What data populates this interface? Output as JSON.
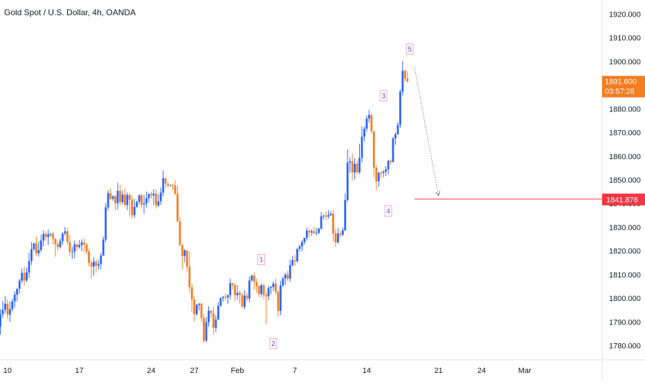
{
  "chart": {
    "title": "Gold Spot / U.S. Dollar, 4h, OANDA"
  },
  "chart_data": {
    "type": "candlestick",
    "title": "Gold Spot / U.S. Dollar, 4h, OANDA",
    "ylim": [
      1774,
      1926
    ],
    "y_ticks": [
      1780,
      1790,
      1800,
      1810,
      1820,
      1830,
      1840,
      1850,
      1860,
      1870,
      1880,
      1890,
      1900,
      1910,
      1920
    ],
    "y_tick_labels": [
      "1780.000",
      "1790.000",
      "1800.000",
      "1810.000",
      "1820.000",
      "1830.000",
      "1840.000",
      "1850.000",
      "1860.000",
      "1870.000",
      "1880.000",
      "1890.000",
      "1900.000",
      "1910.000",
      "1920.000"
    ],
    "x_ticks": [
      {
        "label": "10",
        "candle": 3
      },
      {
        "label": "17",
        "candle": 33
      },
      {
        "label": "24",
        "candle": 63
      },
      {
        "label": "27",
        "candle": 81
      },
      {
        "label": "Feb",
        "candle": 99
      },
      {
        "label": "7",
        "candle": 123
      },
      {
        "label": "14",
        "candle": 153
      },
      {
        "label": "21",
        "candle": 183
      },
      {
        "label": "24",
        "candle": 201
      },
      {
        "label": "Mar",
        "candle": 219
      }
    ],
    "up_color": "#2962ff",
    "down_color": "#f57c1f",
    "grid": false,
    "candles": [
      [
        1788.0,
        1793.2,
        1784.6,
        1795.4
      ],
      [
        1793.2,
        1795.2,
        1791.6,
        1798.8
      ],
      [
        1795.2,
        1797.7,
        1793.7,
        1800.9
      ],
      [
        1797.7,
        1793.1,
        1791.2,
        1799.6
      ],
      [
        1793.1,
        1795.4,
        1789.9,
        1798.6
      ],
      [
        1795.4,
        1798.7,
        1794.4,
        1799.9
      ],
      [
        1798.7,
        1801.5,
        1796.1,
        1802.9
      ],
      [
        1801.5,
        1804.0,
        1798.7,
        1804.1
      ],
      [
        1804.0,
        1807.4,
        1801.9,
        1808.3
      ],
      [
        1807.4,
        1810.7,
        1806.4,
        1812.6
      ],
      [
        1810.7,
        1807.5,
        1805.2,
        1813.3
      ],
      [
        1807.5,
        1810.9,
        1806.9,
        1812.9
      ],
      [
        1810.9,
        1815.7,
        1808.6,
        1819.2
      ],
      [
        1815.7,
        1820.7,
        1814.1,
        1823.7
      ],
      [
        1820.7,
        1823.2,
        1820.0,
        1823.3
      ],
      [
        1823.2,
        1819.0,
        1817.9,
        1826.2
      ],
      [
        1819.0,
        1820.4,
        1817.6,
        1824.1
      ],
      [
        1820.4,
        1824.4,
        1819.4,
        1826.8
      ],
      [
        1824.4,
        1827.2,
        1821.9,
        1828.6
      ],
      [
        1827.2,
        1825.9,
        1824.2,
        1828.2
      ],
      [
        1825.9,
        1827.0,
        1822.5,
        1828.9
      ],
      [
        1827.0,
        1827.2,
        1825.9,
        1827.6
      ],
      [
        1827.2,
        1825.1,
        1822.7,
        1828.2
      ],
      [
        1825.1,
        1822.8,
        1817.6,
        1825.5
      ],
      [
        1822.8,
        1821.6,
        1820.1,
        1823.6
      ],
      [
        1821.6,
        1824.2,
        1820.9,
        1825.4
      ],
      [
        1824.2,
        1827.3,
        1822.7,
        1827.8
      ],
      [
        1827.3,
        1828.3,
        1826.4,
        1830.1
      ],
      [
        1828.3,
        1823.8,
        1822.6,
        1829.7
      ],
      [
        1823.8,
        1819.7,
        1817.9,
        1826.6
      ],
      [
        1819.7,
        1819.7,
        1816.6,
        1821.7
      ],
      [
        1819.7,
        1822.8,
        1817.0,
        1824.4
      ],
      [
        1822.8,
        1821.6,
        1820.0,
        1823.3
      ],
      [
        1821.6,
        1822.5,
        1820.9,
        1824.6
      ],
      [
        1822.5,
        1823.6,
        1819.9,
        1824.9
      ],
      [
        1823.6,
        1822.7,
        1819.4,
        1825.3
      ],
      [
        1822.7,
        1819.7,
        1818.3,
        1823.5
      ],
      [
        1819.7,
        1815.0,
        1813.5,
        1821.0
      ],
      [
        1815.0,
        1813.4,
        1808.4,
        1816.0
      ],
      [
        1813.4,
        1815.4,
        1809.5,
        1817.3
      ],
      [
        1815.4,
        1813.7,
        1810.8,
        1816.5
      ],
      [
        1813.7,
        1814.4,
        1812.1,
        1816.1
      ],
      [
        1814.4,
        1818.0,
        1812.3,
        1819.1
      ],
      [
        1818.0,
        1824.8,
        1817.9,
        1826.1
      ],
      [
        1824.8,
        1838.4,
        1823.6,
        1840.2
      ],
      [
        1838.4,
        1844.4,
        1837.2,
        1845.6
      ],
      [
        1844.4,
        1842.0,
        1841.5,
        1846.4
      ],
      [
        1842.0,
        1843.1,
        1841.1,
        1843.4
      ],
      [
        1843.1,
        1840.1,
        1837.2,
        1843.6
      ],
      [
        1840.1,
        1845.4,
        1837.4,
        1848.8
      ],
      [
        1845.4,
        1840.6,
        1839.2,
        1848.0
      ],
      [
        1840.6,
        1843.8,
        1839.7,
        1845.5
      ],
      [
        1843.8,
        1839.4,
        1838.7,
        1846.3
      ],
      [
        1839.4,
        1843.6,
        1837.3,
        1844.7
      ],
      [
        1843.6,
        1841.7,
        1834.4,
        1844.4
      ],
      [
        1841.7,
        1835.1,
        1833.5,
        1843.4
      ],
      [
        1835.1,
        1838.6,
        1834.0,
        1841.9
      ],
      [
        1838.6,
        1840.7,
        1838.2,
        1841.2
      ],
      [
        1840.7,
        1843.5,
        1839.6,
        1843.9
      ],
      [
        1843.5,
        1839.6,
        1838.0,
        1844.1
      ],
      [
        1839.6,
        1840.1,
        1835.7,
        1843.5
      ],
      [
        1840.1,
        1842.2,
        1838.3,
        1845.1
      ],
      [
        1842.2,
        1844.0,
        1840.6,
        1844.4
      ],
      [
        1844.0,
        1843.4,
        1842.1,
        1845.0
      ],
      [
        1843.4,
        1844.2,
        1839.4,
        1846.1
      ],
      [
        1844.2,
        1839.2,
        1837.9,
        1846.0
      ],
      [
        1839.2,
        1841.0,
        1838.4,
        1844.0
      ],
      [
        1841.0,
        1844.6,
        1839.5,
        1846.7
      ],
      [
        1844.6,
        1850.7,
        1843.0,
        1853.9
      ],
      [
        1850.7,
        1848.4,
        1846.7,
        1850.9
      ],
      [
        1848.4,
        1847.7,
        1846.6,
        1848.8
      ],
      [
        1847.7,
        1847.7,
        1847.3,
        1848.1
      ],
      [
        1847.7,
        1847.6,
        1845.7,
        1848.5
      ],
      [
        1847.6,
        1844.1,
        1843.6,
        1849.9
      ],
      [
        1844.1,
        1832.5,
        1832.0,
        1847.6
      ],
      [
        1832.5,
        1822.5,
        1821.8,
        1834.4
      ],
      [
        1822.5,
        1817.8,
        1812.4,
        1822.8
      ],
      [
        1817.8,
        1820.2,
        1815.1,
        1820.8
      ],
      [
        1820.2,
        1813.4,
        1811.3,
        1820.3
      ],
      [
        1813.4,
        1804.6,
        1802.4,
        1819.6
      ],
      [
        1804.6,
        1799.5,
        1794.1,
        1806.0
      ],
      [
        1799.5,
        1793.3,
        1790.1,
        1801.1
      ],
      [
        1793.3,
        1797.2,
        1792.5,
        1797.6
      ],
      [
        1797.2,
        1797.8,
        1794.8,
        1797.8
      ],
      [
        1797.8,
        1791.6,
        1789.9,
        1797.9
      ],
      [
        1791.6,
        1782.1,
        1781.2,
        1793.4
      ],
      [
        1782.1,
        1789.9,
        1781.3,
        1792.1
      ],
      [
        1789.9,
        1794.7,
        1788.0,
        1796.6
      ],
      [
        1794.7,
        1793.6,
        1791.8,
        1794.9
      ],
      [
        1793.6,
        1787.5,
        1784.7,
        1796.4
      ],
      [
        1787.5,
        1791.0,
        1785.7,
        1792.9
      ],
      [
        1791.0,
        1796.9,
        1790.9,
        1798.3
      ],
      [
        1796.9,
        1800.1,
        1796.3,
        1800.3
      ],
      [
        1800.1,
        1800.6,
        1798.6,
        1801.0
      ],
      [
        1800.6,
        1800.3,
        1799.2,
        1802.2
      ],
      [
        1800.3,
        1801.3,
        1797.6,
        1801.6
      ],
      [
        1801.3,
        1806.3,
        1799.6,
        1808.3
      ],
      [
        1806.3,
        1805.5,
        1803.7,
        1806.5
      ],
      [
        1805.5,
        1801.3,
        1798.7,
        1806.5
      ],
      [
        1801.3,
        1802.3,
        1799.4,
        1805.5
      ],
      [
        1802.3,
        1801.4,
        1797.7,
        1803.2
      ],
      [
        1801.4,
        1796.4,
        1795.7,
        1802.1
      ],
      [
        1796.4,
        1801.1,
        1795.4,
        1803.4
      ],
      [
        1801.1,
        1799.9,
        1798.6,
        1802.4
      ],
      [
        1799.9,
        1807.5,
        1798.3,
        1809.1
      ],
      [
        1807.5,
        1809.6,
        1807.0,
        1809.9
      ],
      [
        1809.6,
        1806.9,
        1803.7,
        1810.9
      ],
      [
        1806.9,
        1805.1,
        1802.3,
        1808.2
      ],
      [
        1805.1,
        1801.8,
        1800.5,
        1805.5
      ],
      [
        1801.8,
        1805.5,
        1800.6,
        1806.1
      ],
      [
        1805.5,
        1801.3,
        1799.5,
        1806.1
      ],
      [
        1801.3,
        1800.8,
        1789.0,
        1802.8
      ],
      [
        1800.8,
        1804.3,
        1799.1,
        1805.3
      ],
      [
        1804.3,
        1804.7,
        1801.6,
        1805.2
      ],
      [
        1804.7,
        1806.2,
        1803.2,
        1807.2
      ],
      [
        1806.2,
        1802.7,
        1801.6,
        1808.3
      ],
      [
        1802.7,
        1794.7,
        1792.2,
        1803.3
      ],
      [
        1794.7,
        1805.4,
        1792.8,
        1807.4
      ],
      [
        1805.4,
        1808.3,
        1804.7,
        1809.1
      ],
      [
        1808.3,
        1810.0,
        1805.6,
        1810.8
      ],
      [
        1810.0,
        1808.3,
        1807.3,
        1811.6
      ],
      [
        1808.3,
        1814.0,
        1806.9,
        1816.3
      ],
      [
        1814.0,
        1816.1,
        1813.4,
        1817.9
      ],
      [
        1816.1,
        1815.6,
        1813.7,
        1818.6
      ],
      [
        1815.6,
        1820.8,
        1815.1,
        1821.3
      ],
      [
        1820.8,
        1821.9,
        1819.6,
        1822.6
      ],
      [
        1821.9,
        1823.7,
        1819.7,
        1824.6
      ],
      [
        1823.7,
        1825.5,
        1822.7,
        1825.6
      ],
      [
        1825.5,
        1828.5,
        1824.4,
        1829.8
      ],
      [
        1828.5,
        1827.8,
        1825.8,
        1829.3
      ],
      [
        1827.8,
        1828.3,
        1826.3,
        1829.1
      ],
      [
        1828.3,
        1827.5,
        1827.0,
        1830.2
      ],
      [
        1827.5,
        1827.6,
        1826.5,
        1829.8
      ],
      [
        1827.6,
        1829.4,
        1827.2,
        1829.8
      ],
      [
        1829.4,
        1834.6,
        1829.0,
        1836.4
      ],
      [
        1834.6,
        1834.9,
        1833.3,
        1835.3
      ],
      [
        1834.9,
        1834.5,
        1833.1,
        1836.7
      ],
      [
        1834.5,
        1835.1,
        1833.7,
        1837.1
      ],
      [
        1835.1,
        1835.7,
        1834.8,
        1836.6
      ],
      [
        1835.7,
        1827.4,
        1823.9,
        1837.2
      ],
      [
        1827.4,
        1823.6,
        1821.8,
        1829.2
      ],
      [
        1823.6,
        1827.4,
        1823.1,
        1829.8
      ],
      [
        1827.4,
        1826.8,
        1825.5,
        1828.5
      ],
      [
        1826.8,
        1828.7,
        1826.3,
        1829.9
      ],
      [
        1828.7,
        1841.5,
        1828.4,
        1844.2
      ],
      [
        1841.5,
        1857.3,
        1840.7,
        1862.9
      ],
      [
        1857.3,
        1857.8,
        1853.0,
        1859.4
      ],
      [
        1857.8,
        1853.2,
        1849.7,
        1861.3
      ],
      [
        1853.2,
        1856.8,
        1850.1,
        1859.1
      ],
      [
        1856.8,
        1853.2,
        1852.4,
        1858.3
      ],
      [
        1853.2,
        1859.3,
        1852.6,
        1865.3
      ],
      [
        1859.3,
        1868.3,
        1857.4,
        1872.6
      ],
      [
        1868.3,
        1871.6,
        1866.3,
        1872.6
      ],
      [
        1871.6,
        1875.9,
        1870.4,
        1877.2
      ],
      [
        1875.9,
        1877.4,
        1874.2,
        1879.6
      ],
      [
        1877.4,
        1870.6,
        1869.4,
        1878.0
      ],
      [
        1870.6,
        1855.1,
        1851.1,
        1870.6
      ],
      [
        1855.1,
        1849.4,
        1845.6,
        1856.1
      ],
      [
        1849.4,
        1853.1,
        1847.0,
        1853.2
      ],
      [
        1853.1,
        1852.9,
        1850.6,
        1853.6
      ],
      [
        1852.9,
        1853.5,
        1851.1,
        1854.2
      ],
      [
        1853.5,
        1854.4,
        1851.7,
        1855.8
      ],
      [
        1854.4,
        1858.1,
        1852.3,
        1858.4
      ],
      [
        1858.1,
        1857.6,
        1856.4,
        1858.7
      ],
      [
        1857.6,
        1867.5,
        1857.3,
        1868.1
      ],
      [
        1867.5,
        1869.3,
        1864.8,
        1870.1
      ],
      [
        1869.3,
        1873.2,
        1869.0,
        1874.4
      ],
      [
        1873.2,
        1887.3,
        1872.0,
        1888.3
      ],
      [
        1887.3,
        1896.1,
        1885.6,
        1900.1
      ],
      [
        1896.1,
        1892.8,
        1891.4,
        1896.6
      ],
      [
        1892.8,
        1891.6,
        1891.1,
        1896.0
      ]
    ],
    "wave_labels": [
      {
        "label": "1",
        "candle": 109,
        "price": 1813.7,
        "side": "above"
      },
      {
        "label": "2",
        "candle": 114,
        "price": 1783.5,
        "side": "below"
      },
      {
        "label": "3",
        "candle": 160,
        "price": 1882.9,
        "side": "above"
      },
      {
        "label": "4",
        "candle": 162,
        "price": 1839.5,
        "side": "below"
      },
      {
        "label": "5",
        "candle": 171,
        "price": 1902.6,
        "side": "above"
      }
    ],
    "current_price": {
      "price": 1891.6,
      "label": "1891.600",
      "countdown": "03:57:28",
      "color": "#f57c1f"
    },
    "target_line": {
      "price": 1841.876,
      "label": "1841.876",
      "color": "#f23645",
      "from_candle": 173
    },
    "projection_arrow": {
      "from_candle": 173,
      "from_price": 1897.5,
      "to_candle": 183,
      "to_price": 1843.3
    }
  }
}
